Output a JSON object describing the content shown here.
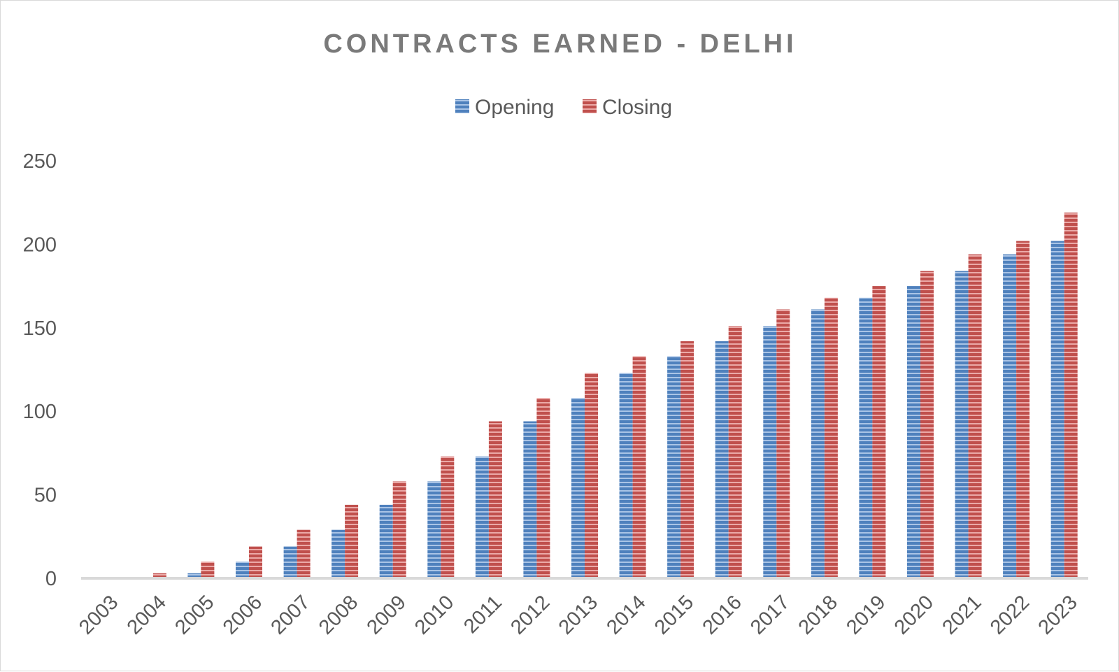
{
  "chart_data": {
    "type": "bar",
    "title": "CONTRACTS EARNED - DELHI",
    "xlabel": "",
    "ylabel": "",
    "categories": [
      "2003",
      "2004",
      "2005",
      "2006",
      "2007",
      "2008",
      "2009",
      "2010",
      "2011",
      "2012",
      "2013",
      "2014",
      "2015",
      "2016",
      "2017",
      "2018",
      "2019",
      "2020",
      "2021",
      "2022",
      "2023"
    ],
    "series": [
      {
        "name": "Opening",
        "color": "#4f81bd",
        "values": [
          0,
          0,
          3,
          10,
          19,
          29,
          44,
          58,
          73,
          94,
          108,
          123,
          133,
          142,
          151,
          161,
          168,
          175,
          184,
          194,
          202
        ]
      },
      {
        "name": "Closing",
        "color": "#c0504d",
        "values": [
          0,
          3,
          10,
          19,
          29,
          44,
          58,
          73,
          94,
          108,
          123,
          133,
          142,
          151,
          161,
          168,
          175,
          184,
          194,
          202,
          219
        ]
      }
    ],
    "ylim": [
      0,
      250
    ],
    "yticks": [
      0,
      50,
      100,
      150,
      200,
      250
    ],
    "grid": false,
    "legend_position": "top"
  }
}
